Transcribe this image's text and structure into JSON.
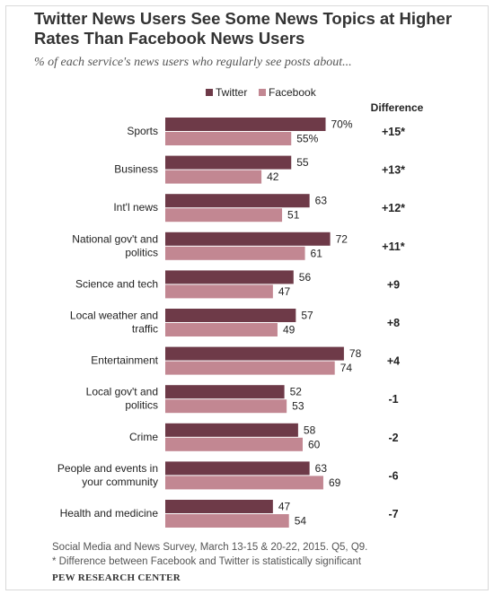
{
  "title": "Twitter News Users See Some News Topics at Higher Rates Than Facebook News Users",
  "subtitle": "% of each service's news users who regularly see posts about...",
  "note_source": "Social Media and News Survey, March 13-15 & 20-22, 2015. Q5, Q9.",
  "note_significance": "* Difference between Facebook and Twitter is statistically significant",
  "brand": "PEW RESEARCH CENTER",
  "colors": {
    "twitter": "#6e3a48",
    "facebook": "#c28792"
  },
  "chart_data": {
    "type": "bar",
    "orientation": "horizontal",
    "categories": [
      [
        "Sports"
      ],
      [
        "Business"
      ],
      [
        "Int'l news"
      ],
      [
        "National gov't and",
        "politics"
      ],
      [
        "Science and tech"
      ],
      [
        "Local weather and",
        "traffic"
      ],
      [
        "Entertainment"
      ],
      [
        "Local gov't and",
        "politics"
      ],
      [
        "Crime"
      ],
      [
        "People and events in",
        "your community"
      ],
      [
        "Health and medicine"
      ]
    ],
    "series": [
      {
        "name": "Twitter",
        "values": [
          70,
          55,
          63,
          72,
          56,
          57,
          78,
          52,
          58,
          63,
          47
        ]
      },
      {
        "name": "Facebook",
        "values": [
          55,
          42,
          51,
          61,
          47,
          49,
          74,
          53,
          60,
          69,
          54
        ]
      }
    ],
    "value_labels": {
      "Twitter": [
        "70%",
        "55",
        "63",
        "72",
        "56",
        "57",
        "78",
        "52",
        "58",
        "63",
        "47"
      ],
      "Facebook": [
        "55%",
        "42",
        "51",
        "61",
        "47",
        "49",
        "74",
        "53",
        "60",
        "69",
        "54"
      ]
    },
    "difference_header": "Difference",
    "difference": [
      "+15*",
      "+13*",
      "+12*",
      "+11*",
      "+9",
      "+8",
      "+4",
      "-1",
      "-2",
      "-6",
      "-7"
    ],
    "legend_position": "top"
  }
}
